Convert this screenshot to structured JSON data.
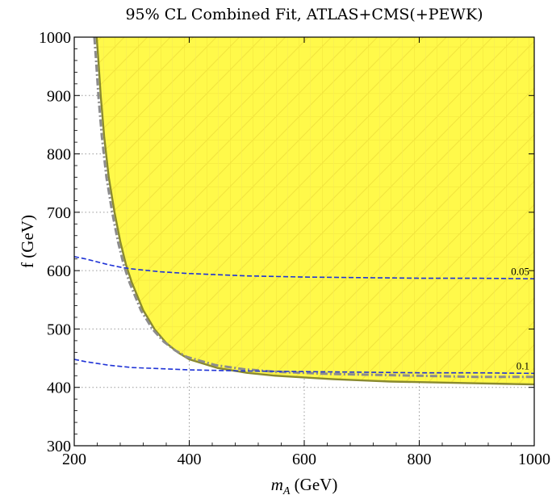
{
  "chart_data": {
    "type": "contour",
    "title": "95% CL Combined Fit, ATLAS+CMS(+PEWK)",
    "xlabel_main": "m",
    "xlabel_sub": "A",
    "xlabel_unit": " (GeV)",
    "ylabel": "f (GeV)",
    "xlim": [
      200,
      1000
    ],
    "ylim": [
      300,
      1000
    ],
    "xticks": [
      200,
      400,
      600,
      800,
      1000
    ],
    "yticks": [
      300,
      400,
      500,
      600,
      700,
      800,
      900,
      1000
    ],
    "xtick_labels": [
      "200",
      "400",
      "600",
      "800",
      "1000"
    ],
    "ytick_labels": [
      "300",
      "400",
      "500",
      "600",
      "700",
      "800",
      "900",
      "1000"
    ],
    "grid": "dotted",
    "colors": {
      "allowed_fill": "#fff94a",
      "hatch": "#f1e33c",
      "boundary": "#8a8a2e",
      "dashed_gray": "#8c8c8c",
      "contour_blue": "#1f33d6"
    },
    "series": [
      {
        "style": "allowed-region boundary",
        "x": [
          239,
          242,
          246,
          252,
          260,
          270,
          280,
          290,
          300,
          320,
          340,
          360,
          380,
          400,
          450,
          500,
          550,
          600,
          650,
          700,
          750,
          800,
          850,
          900,
          950,
          1000
        ],
        "y": [
          1000,
          960,
          900,
          830,
          760,
          700,
          650,
          610,
          580,
          532,
          499,
          476,
          460,
          448,
          433,
          425,
          420,
          417,
          414,
          412,
          410,
          409,
          408,
          407,
          406,
          405
        ]
      },
      {
        "style": "gray dot-dashed",
        "x": [
          235,
          238,
          242,
          248,
          256,
          266,
          276,
          286,
          296,
          316,
          336,
          356,
          376,
          396,
          446,
          496,
          546,
          596,
          646,
          696,
          746,
          796,
          846,
          896,
          946,
          1000
        ],
        "y": [
          1000,
          960,
          900,
          830,
          760,
          700,
          650,
          610,
          580,
          532,
          500,
          478,
          463,
          452,
          438,
          431,
          427,
          425,
          423,
          422,
          421,
          420,
          419,
          418,
          418,
          418
        ]
      },
      {
        "label": "0.05",
        "style": "blue dashed",
        "x": [
          200,
          220,
          240,
          260,
          280,
          300,
          350,
          400,
          450,
          500,
          600,
          700,
          800,
          900,
          1000
        ],
        "y": [
          624,
          620,
          615,
          610,
          606,
          603,
          598,
          595,
          593,
          591,
          589,
          588,
          587,
          587,
          586
        ]
      },
      {
        "label": "0.1",
        "style": "blue dashed",
        "x": [
          200,
          220,
          240,
          260,
          280,
          300,
          350,
          400,
          450,
          500,
          600,
          700,
          800,
          900,
          1000
        ],
        "y": [
          448,
          444,
          441,
          438,
          436,
          434,
          432,
          430,
          429,
          428,
          427,
          426,
          425,
          425,
          424
        ]
      }
    ]
  }
}
